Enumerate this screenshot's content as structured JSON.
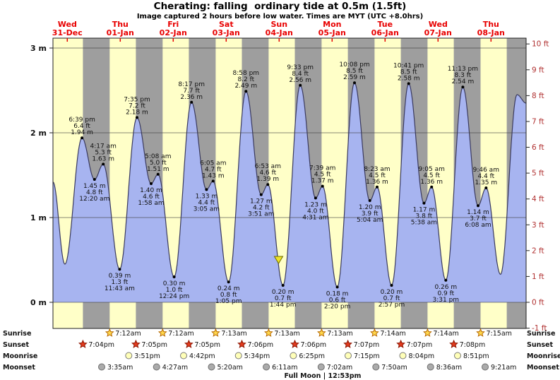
{
  "title": "Cherating: falling  ordinary tide at 0.5m (1.5ft)",
  "subtitle": "Image captured 2 hours before low water. Times are MYT (UTC +8.0hrs)",
  "days": [
    {
      "weekday": "Wed",
      "date": "31-Dec"
    },
    {
      "weekday": "Thu",
      "date": "01-Jan"
    },
    {
      "weekday": "Fri",
      "date": "02-Jan"
    },
    {
      "weekday": "Sat",
      "date": "03-Jan"
    },
    {
      "weekday": "Sun",
      "date": "04-Jan"
    },
    {
      "weekday": "Mon",
      "date": "05-Jan"
    },
    {
      "weekday": "Tue",
      "date": "06-Jan"
    },
    {
      "weekday": "Wed",
      "date": "07-Jan"
    },
    {
      "weekday": "Thu",
      "date": "08-Jan"
    }
  ],
  "axis_left": {
    "values": [
      0,
      1,
      2,
      3
    ],
    "labels": [
      "0 m",
      "1 m",
      "2 m",
      "3 m"
    ]
  },
  "axis_right": {
    "values": [
      -1,
      0,
      1,
      2,
      3,
      4,
      5,
      6,
      7,
      8,
      9,
      10
    ],
    "labels": [
      "-1 ft",
      "0 ft",
      "1 ft",
      "2 ft",
      "3 ft",
      "4 ft",
      "5 ft",
      "6 ft",
      "7 ft",
      "8 ft",
      "9 ft",
      "10 ft"
    ]
  },
  "chart_data": {
    "type": "area",
    "title": "Tide height curve, Cherating, 31-Dec to 08-Jan",
    "x_unit": "hours since 31-Dec 00:00 MYT",
    "y_unit": "metres",
    "xlim": [
      5.5,
      219.9
    ],
    "ylim_m": [
      -0.31,
      3.2
    ],
    "curve_points": [
      [
        5.5,
        1.42
      ],
      [
        10.9,
        0.45
      ],
      [
        18.65,
        1.94
      ],
      [
        24.33,
        1.45
      ],
      [
        28.28,
        1.63
      ],
      [
        35.72,
        0.39
      ],
      [
        43.58,
        2.18
      ],
      [
        49.97,
        1.4
      ],
      [
        53.13,
        1.51
      ],
      [
        60.4,
        0.3
      ],
      [
        68.28,
        2.36
      ],
      [
        75.08,
        1.33
      ],
      [
        78.08,
        1.43
      ],
      [
        85.08,
        0.24
      ],
      [
        92.97,
        2.49
      ],
      [
        99.85,
        1.27
      ],
      [
        102.88,
        1.39
      ],
      [
        109.73,
        0.2
      ],
      [
        117.55,
        2.56
      ],
      [
        124.52,
        1.23
      ],
      [
        127.65,
        1.37
      ],
      [
        134.33,
        0.18
      ],
      [
        142.13,
        2.59
      ],
      [
        149.07,
        1.2
      ],
      [
        152.38,
        1.36
      ],
      [
        158.95,
        0.2
      ],
      [
        166.68,
        2.58
      ],
      [
        173.63,
        1.17
      ],
      [
        177.08,
        1.36
      ],
      [
        183.52,
        0.26
      ],
      [
        191.22,
        2.54
      ],
      [
        198.13,
        1.14
      ],
      [
        201.77,
        1.35
      ],
      [
        208.3,
        0.33
      ],
      [
        215.8,
        2.45
      ],
      [
        219.9,
        2.35
      ]
    ],
    "tide_events": [
      {
        "t": 18.65,
        "h": 1.94,
        "type": "high",
        "label_side": "above",
        "lines": [
          "6:39 pm",
          "6.4 ft",
          "1.94 m"
        ]
      },
      {
        "t": 24.33,
        "h": 1.45,
        "type": "low",
        "label_side": "below",
        "lines": [
          "1.45 m",
          "4.8 ft",
          "12:20 am"
        ]
      },
      {
        "t": 28.28,
        "h": 1.63,
        "type": "high",
        "label_side": "above",
        "lines": [
          "4:17 am",
          "5.3 ft",
          "1.63 m"
        ]
      },
      {
        "t": 35.72,
        "h": 0.39,
        "type": "low",
        "label_side": "below",
        "lines": [
          "0.39 m",
          "1.3 ft",
          "11:43 am"
        ]
      },
      {
        "t": 43.58,
        "h": 2.18,
        "type": "high",
        "label_side": "above",
        "lines": [
          "7:35 pm",
          "7.2 ft",
          "2.18 m"
        ]
      },
      {
        "t": 49.97,
        "h": 1.4,
        "type": "low",
        "label_side": "below",
        "lines": [
          "1.40 m",
          "4.6 ft",
          "1:58 am"
        ]
      },
      {
        "t": 53.13,
        "h": 1.51,
        "type": "high",
        "label_side": "above",
        "lines": [
          "5:08 am",
          "5.0 ft",
          "1.51 m"
        ]
      },
      {
        "t": 60.4,
        "h": 0.3,
        "type": "low",
        "label_side": "below",
        "lines": [
          "0.30 m",
          "1.0 ft",
          "12:24 pm"
        ]
      },
      {
        "t": 68.28,
        "h": 2.36,
        "type": "high",
        "label_side": "above",
        "lines": [
          "8:17 pm",
          "7.7 ft",
          "2.36 m"
        ]
      },
      {
        "t": 75.08,
        "h": 1.33,
        "type": "low",
        "label_side": "below",
        "lines": [
          "1.33 m",
          "4.4 ft",
          "3:05 am"
        ]
      },
      {
        "t": 78.08,
        "h": 1.43,
        "type": "high",
        "label_side": "above",
        "lines": [
          "6:05 am",
          "4.7 ft",
          "1.43 m"
        ]
      },
      {
        "t": 85.08,
        "h": 0.24,
        "type": "low",
        "label_side": "below",
        "lines": [
          "0.24 m",
          "0.8 ft",
          "1:05 pm"
        ]
      },
      {
        "t": 92.97,
        "h": 2.49,
        "type": "high",
        "label_side": "above",
        "lines": [
          "8:58 pm",
          "8.2 ft",
          "2.49 m"
        ]
      },
      {
        "t": 99.85,
        "h": 1.27,
        "type": "low",
        "label_side": "below",
        "lines": [
          "1.27 m",
          "4.2 ft",
          "3:51 am"
        ]
      },
      {
        "t": 102.88,
        "h": 1.39,
        "type": "high",
        "label_side": "above",
        "lines": [
          "6:53 am",
          "4.6 ft",
          "1.39 m"
        ]
      },
      {
        "t": 109.73,
        "h": 0.2,
        "type": "low",
        "label_side": "below",
        "lines": [
          "0.20 m",
          "0.7 ft",
          "1:44 pm"
        ]
      },
      {
        "t": 117.55,
        "h": 2.56,
        "type": "high",
        "label_side": "above",
        "lines": [
          "9:33 pm",
          "8.4 ft",
          "2.56 m"
        ]
      },
      {
        "t": 124.52,
        "h": 1.23,
        "type": "low",
        "label_side": "below",
        "lines": [
          "1.23 m",
          "4.0 ft",
          "4:31 am"
        ]
      },
      {
        "t": 127.65,
        "h": 1.37,
        "type": "high",
        "label_side": "above",
        "lines": [
          "7:39 am",
          "4.5 ft",
          "1.37 m"
        ]
      },
      {
        "t": 134.33,
        "h": 0.18,
        "type": "low",
        "label_side": "below",
        "lines": [
          "0.18 m",
          "0.6 ft",
          "2:20 pm"
        ]
      },
      {
        "t": 142.13,
        "h": 2.59,
        "type": "high",
        "label_side": "above",
        "lines": [
          "10:08 pm",
          "8.5 ft",
          "2.59 m"
        ]
      },
      {
        "t": 149.07,
        "h": 1.2,
        "type": "low",
        "label_side": "below",
        "lines": [
          "1.20 m",
          "3.9 ft",
          "5:04 am"
        ]
      },
      {
        "t": 152.38,
        "h": 1.36,
        "type": "high",
        "label_side": "above",
        "lines": [
          "8:23 am",
          "4.5 ft",
          "1.36 m"
        ]
      },
      {
        "t": 158.95,
        "h": 0.2,
        "type": "low",
        "label_side": "below",
        "lines": [
          "0.20 m",
          "0.7 ft",
          "2:57 pm"
        ]
      },
      {
        "t": 166.68,
        "h": 2.58,
        "type": "high",
        "label_side": "above",
        "lines": [
          "10:41 pm",
          "8.5 ft",
          "2.58 m"
        ]
      },
      {
        "t": 173.63,
        "h": 1.17,
        "type": "low",
        "label_side": "below",
        "lines": [
          "1.17 m",
          "3.8 ft",
          "5:38 am"
        ]
      },
      {
        "t": 177.08,
        "h": 1.36,
        "type": "high",
        "label_side": "above",
        "lines": [
          "9:05 am",
          "4.5 ft",
          "1.36 m"
        ]
      },
      {
        "t": 183.52,
        "h": 0.26,
        "type": "low",
        "label_side": "below",
        "lines": [
          "0.26 m",
          "0.9 ft",
          "3:31 pm"
        ]
      },
      {
        "t": 191.22,
        "h": 2.54,
        "type": "high",
        "label_side": "above",
        "lines": [
          "11:13 pm",
          "8.3 ft",
          "2.54 m"
        ]
      },
      {
        "t": 198.13,
        "h": 1.14,
        "type": "low",
        "label_side": "below",
        "lines": [
          "1.14 m",
          "3.7 ft",
          "6:08 am"
        ]
      },
      {
        "t": 201.77,
        "h": 1.35,
        "type": "high",
        "label_side": "above",
        "lines": [
          "9:46 am",
          "4.4 ft",
          "1.35 m"
        ]
      }
    ],
    "night_bands": [
      [
        19.07,
        31.2
      ],
      [
        43.08,
        55.2
      ],
      [
        67.08,
        79.22
      ],
      [
        91.1,
        103.22
      ],
      [
        115.1,
        127.22
      ],
      [
        139.12,
        151.23
      ],
      [
        163.12,
        175.23
      ],
      [
        187.13,
        199.25
      ],
      [
        211.13,
        219.9
      ]
    ],
    "current_marker": {
      "t": 107.73,
      "h": 0.5
    }
  },
  "astro": {
    "rows": [
      {
        "name": "Sunrise",
        "icon": "sunrise",
        "entries": [
          {
            "t": 31.2,
            "time": "7:12am"
          },
          {
            "t": 55.2,
            "time": "7:12am"
          },
          {
            "t": 79.22,
            "time": "7:13am"
          },
          {
            "t": 103.22,
            "time": "7:13am"
          },
          {
            "t": 127.22,
            "time": "7:13am"
          },
          {
            "t": 151.23,
            "time": "7:14am"
          },
          {
            "t": 175.23,
            "time": "7:14am"
          },
          {
            "t": 199.25,
            "time": "7:15am"
          }
        ]
      },
      {
        "name": "Sunset",
        "icon": "sunset",
        "entries": [
          {
            "t": 19.07,
            "time": "7:04pm"
          },
          {
            "t": 43.08,
            "time": "7:05pm"
          },
          {
            "t": 67.08,
            "time": "7:05pm"
          },
          {
            "t": 91.1,
            "time": "7:06pm"
          },
          {
            "t": 115.1,
            "time": "7:06pm"
          },
          {
            "t": 139.12,
            "time": "7:07pm"
          },
          {
            "t": 163.12,
            "time": "7:07pm"
          },
          {
            "t": 187.13,
            "time": "7:08pm"
          }
        ]
      },
      {
        "name": "Moonrise",
        "icon": "moonrise",
        "entries": [
          {
            "t": 39.85,
            "time": "3:51pm"
          },
          {
            "t": 64.7,
            "time": "4:42pm"
          },
          {
            "t": 89.57,
            "time": "5:34pm"
          },
          {
            "t": 114.42,
            "time": "6:25pm"
          },
          {
            "t": 139.25,
            "time": "7:15pm"
          },
          {
            "t": 164.07,
            "time": "8:04pm"
          },
          {
            "t": 188.85,
            "time": "8:51pm"
          }
        ]
      },
      {
        "name": "Moonset",
        "icon": "moonset",
        "entries": [
          {
            "t": 27.58,
            "time": "3:35am"
          },
          {
            "t": 52.45,
            "time": "4:27am"
          },
          {
            "t": 77.33,
            "time": "5:20am"
          },
          {
            "t": 102.18,
            "time": "6:11am"
          },
          {
            "t": 127.03,
            "time": "7:02am"
          },
          {
            "t": 151.83,
            "time": "7:50am"
          },
          {
            "t": 176.6,
            "time": "8:36am"
          },
          {
            "t": 201.35,
            "time": "9:21am"
          }
        ]
      }
    ],
    "footnote": "Full Moon | 12:53pm"
  },
  "colors": {
    "day_band": "#ffffc8",
    "night_band": "#9e9e9e",
    "tide_fill": "#a7b4f0",
    "tide_line": "#3a3a5e",
    "grid_line": "#3c3c3c",
    "plot_border": "#222222",
    "day_label": "#e80000",
    "ft_label": "#b03030",
    "m_label": "#111111",
    "annotation": "#111111",
    "sunrise_star_fill": "#ffd84d",
    "sunrise_star_stroke": "#b86a00",
    "sunset_star_fill": "#e23b1e",
    "sunset_star_stroke": "#8c1400",
    "moonrise_fill": "#ffffb8",
    "moonrise_stroke": "#7a7a7a",
    "moonset_fill": "#ababab",
    "moonset_stroke": "#6f6f6f",
    "marker_fill": "#efe229",
    "marker_stroke": "#6b6b00"
  }
}
